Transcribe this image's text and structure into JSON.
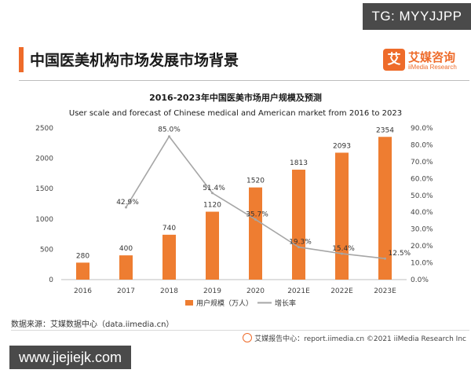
{
  "watermark_top": "TG: MYYJJPP",
  "page_title": "中国医美机构市场发展市场背景",
  "logo": {
    "mark": "艾",
    "name_cn": "艾媒咨询",
    "name_en": "iiMedia Research"
  },
  "source_text": "数据来源：艾媒数据中心（data.iimedia.cn）",
  "footer_text": "艾媒报告中心：report.iimedia.cn   ©2021  iiMedia Research  Inc",
  "watermark_bottom": "www.jiejiejk.com",
  "colors": {
    "bar": "#ee7d31",
    "line": "#a6a6a6",
    "accent": "#ee6b2a"
  },
  "chart_data": {
    "type": "bar",
    "title": "2016-2023年中国医美市场用户规模及预测",
    "subtitle": "User scale and forecast of Chinese medical and American market from 2016 to 2023",
    "categories": [
      "2016",
      "2017",
      "2018",
      "2019",
      "2020",
      "2021E",
      "2022E",
      "2023E"
    ],
    "series": [
      {
        "name": "用户规模（万人）",
        "type": "bar",
        "axis": "left",
        "values": [
          280,
          400,
          740,
          1120,
          1520,
          1813,
          2093,
          2354
        ],
        "labels": [
          "280",
          "400",
          "740",
          "1120",
          "1520",
          "1813",
          "2093",
          "2354"
        ]
      },
      {
        "name": "增长率",
        "type": "line",
        "axis": "right",
        "values": [
          null,
          42.9,
          85.0,
          51.4,
          35.7,
          19.3,
          15.4,
          12.5
        ],
        "labels": [
          "",
          "42.9%",
          "85.0%",
          "51.4%",
          "35.7%",
          "19.3%",
          "15.4%",
          "12.5%"
        ]
      }
    ],
    "ylim_left": [
      0,
      2500
    ],
    "yticks_left": [
      "0",
      "500",
      "1000",
      "1500",
      "2000",
      "2500"
    ],
    "ylim_right": [
      0,
      90
    ],
    "yticks_right": [
      "0.0%",
      "10.0%",
      "20.0%",
      "30.0%",
      "40.0%",
      "50.0%",
      "60.0%",
      "70.0%",
      "80.0%",
      "90.0%"
    ],
    "legend_position": "bottom",
    "grid": false
  }
}
